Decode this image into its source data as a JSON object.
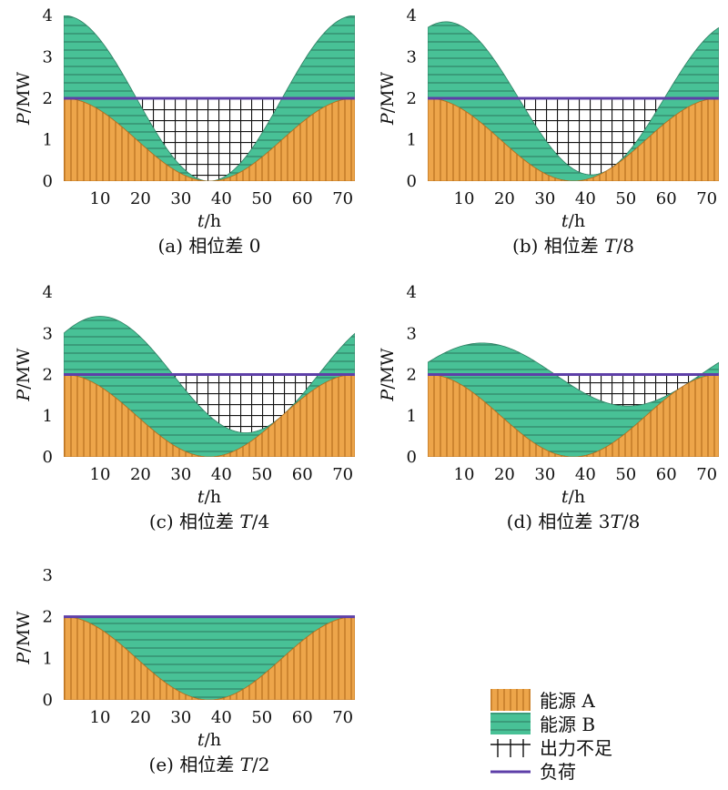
{
  "colors": {
    "energy_a": "#EDA54A",
    "energy_a_stripe": "#B8701E",
    "energy_b": "#48C196",
    "energy_b_stripe": "#2E7F62",
    "shortfall_grid": "#111111",
    "load": "#5E3FA8"
  },
  "legend": {
    "items": [
      {
        "key": "energy_a",
        "label": "能源 A"
      },
      {
        "key": "energy_b",
        "label": "能源 B"
      },
      {
        "key": "shortfall",
        "label": "出力不足"
      },
      {
        "key": "load",
        "label": "负荷"
      }
    ]
  },
  "chart_data": [
    {
      "type": "area",
      "caption_prefix": "(a) 相位差 ",
      "caption_italic": "",
      "caption_suffix": "0",
      "ylabel_italic": "P",
      "ylabel_rest": "/MW",
      "xlabel_italic": "t",
      "xlabel_rest": "/h",
      "xlim": [
        1,
        73
      ],
      "ylim": [
        0,
        4
      ],
      "xticks": [
        10,
        20,
        30,
        40,
        50,
        60,
        70
      ],
      "yticks": [
        0,
        1,
        2,
        3,
        4
      ],
      "load_mw": 2,
      "energy_a": {
        "amplitude": 1,
        "offset": 1,
        "period_h": 72,
        "peak_h": 1
      },
      "energy_b": {
        "amplitude": 1,
        "offset": 1,
        "period_h": 72,
        "peak_h": 1
      }
    },
    {
      "type": "area",
      "caption_prefix": "(b) 相位差 ",
      "caption_italic": "T",
      "caption_suffix": "/8",
      "ylabel_italic": "P",
      "ylabel_rest": "/MW",
      "xlabel_italic": "t",
      "xlabel_rest": "/h",
      "xlim": [
        1,
        73
      ],
      "ylim": [
        0,
        4
      ],
      "xticks": [
        10,
        20,
        30,
        40,
        50,
        60,
        70
      ],
      "yticks": [
        0,
        1,
        2,
        3,
        4
      ],
      "load_mw": 2,
      "energy_a": {
        "amplitude": 1,
        "offset": 1,
        "period_h": 72,
        "peak_h": 1
      },
      "energy_b": {
        "amplitude": 1,
        "offset": 1,
        "period_h": 72,
        "peak_h": 10
      }
    },
    {
      "type": "area",
      "caption_prefix": "(c) 相位差 ",
      "caption_italic": "T",
      "caption_suffix": "/4",
      "ylabel_italic": "P",
      "ylabel_rest": "/MW",
      "xlabel_italic": "t",
      "xlabel_rest": "/h",
      "xlim": [
        1,
        73
      ],
      "ylim": [
        0,
        4
      ],
      "xticks": [
        10,
        20,
        30,
        40,
        50,
        60,
        70
      ],
      "yticks": [
        0,
        1,
        2,
        3,
        4
      ],
      "load_mw": 2,
      "energy_a": {
        "amplitude": 1,
        "offset": 1,
        "period_h": 72,
        "peak_h": 1
      },
      "energy_b": {
        "amplitude": 1,
        "offset": 1,
        "period_h": 72,
        "peak_h": 19
      }
    },
    {
      "type": "area",
      "caption_prefix": "(d) 相位差 3",
      "caption_italic": "T",
      "caption_suffix": "/8",
      "ylabel_italic": "P",
      "ylabel_rest": "/MW",
      "xlabel_italic": "t",
      "xlabel_rest": "/h",
      "xlim": [
        1,
        73
      ],
      "ylim": [
        0,
        4
      ],
      "xticks": [
        10,
        20,
        30,
        40,
        50,
        60,
        70
      ],
      "yticks": [
        0,
        1,
        2,
        3,
        4
      ],
      "load_mw": 2,
      "energy_a": {
        "amplitude": 1,
        "offset": 1,
        "period_h": 72,
        "peak_h": 1
      },
      "energy_b": {
        "amplitude": 1,
        "offset": 1,
        "period_h": 72,
        "peak_h": 28
      }
    },
    {
      "type": "area",
      "caption_prefix": "(e) 相位差 ",
      "caption_italic": "T",
      "caption_suffix": "/2",
      "ylabel_italic": "P",
      "ylabel_rest": "/MW",
      "xlabel_italic": "t",
      "xlabel_rest": "/h",
      "xlim": [
        1,
        73
      ],
      "ylim": [
        0,
        3
      ],
      "xticks": [
        10,
        20,
        30,
        40,
        50,
        60,
        70
      ],
      "yticks": [
        0,
        1,
        2,
        3
      ],
      "load_mw": 2,
      "energy_a": {
        "amplitude": 1,
        "offset": 1,
        "period_h": 72,
        "peak_h": 1
      },
      "energy_b": {
        "amplitude": 1,
        "offset": 1,
        "period_h": 72,
        "peak_h": 37
      }
    }
  ]
}
